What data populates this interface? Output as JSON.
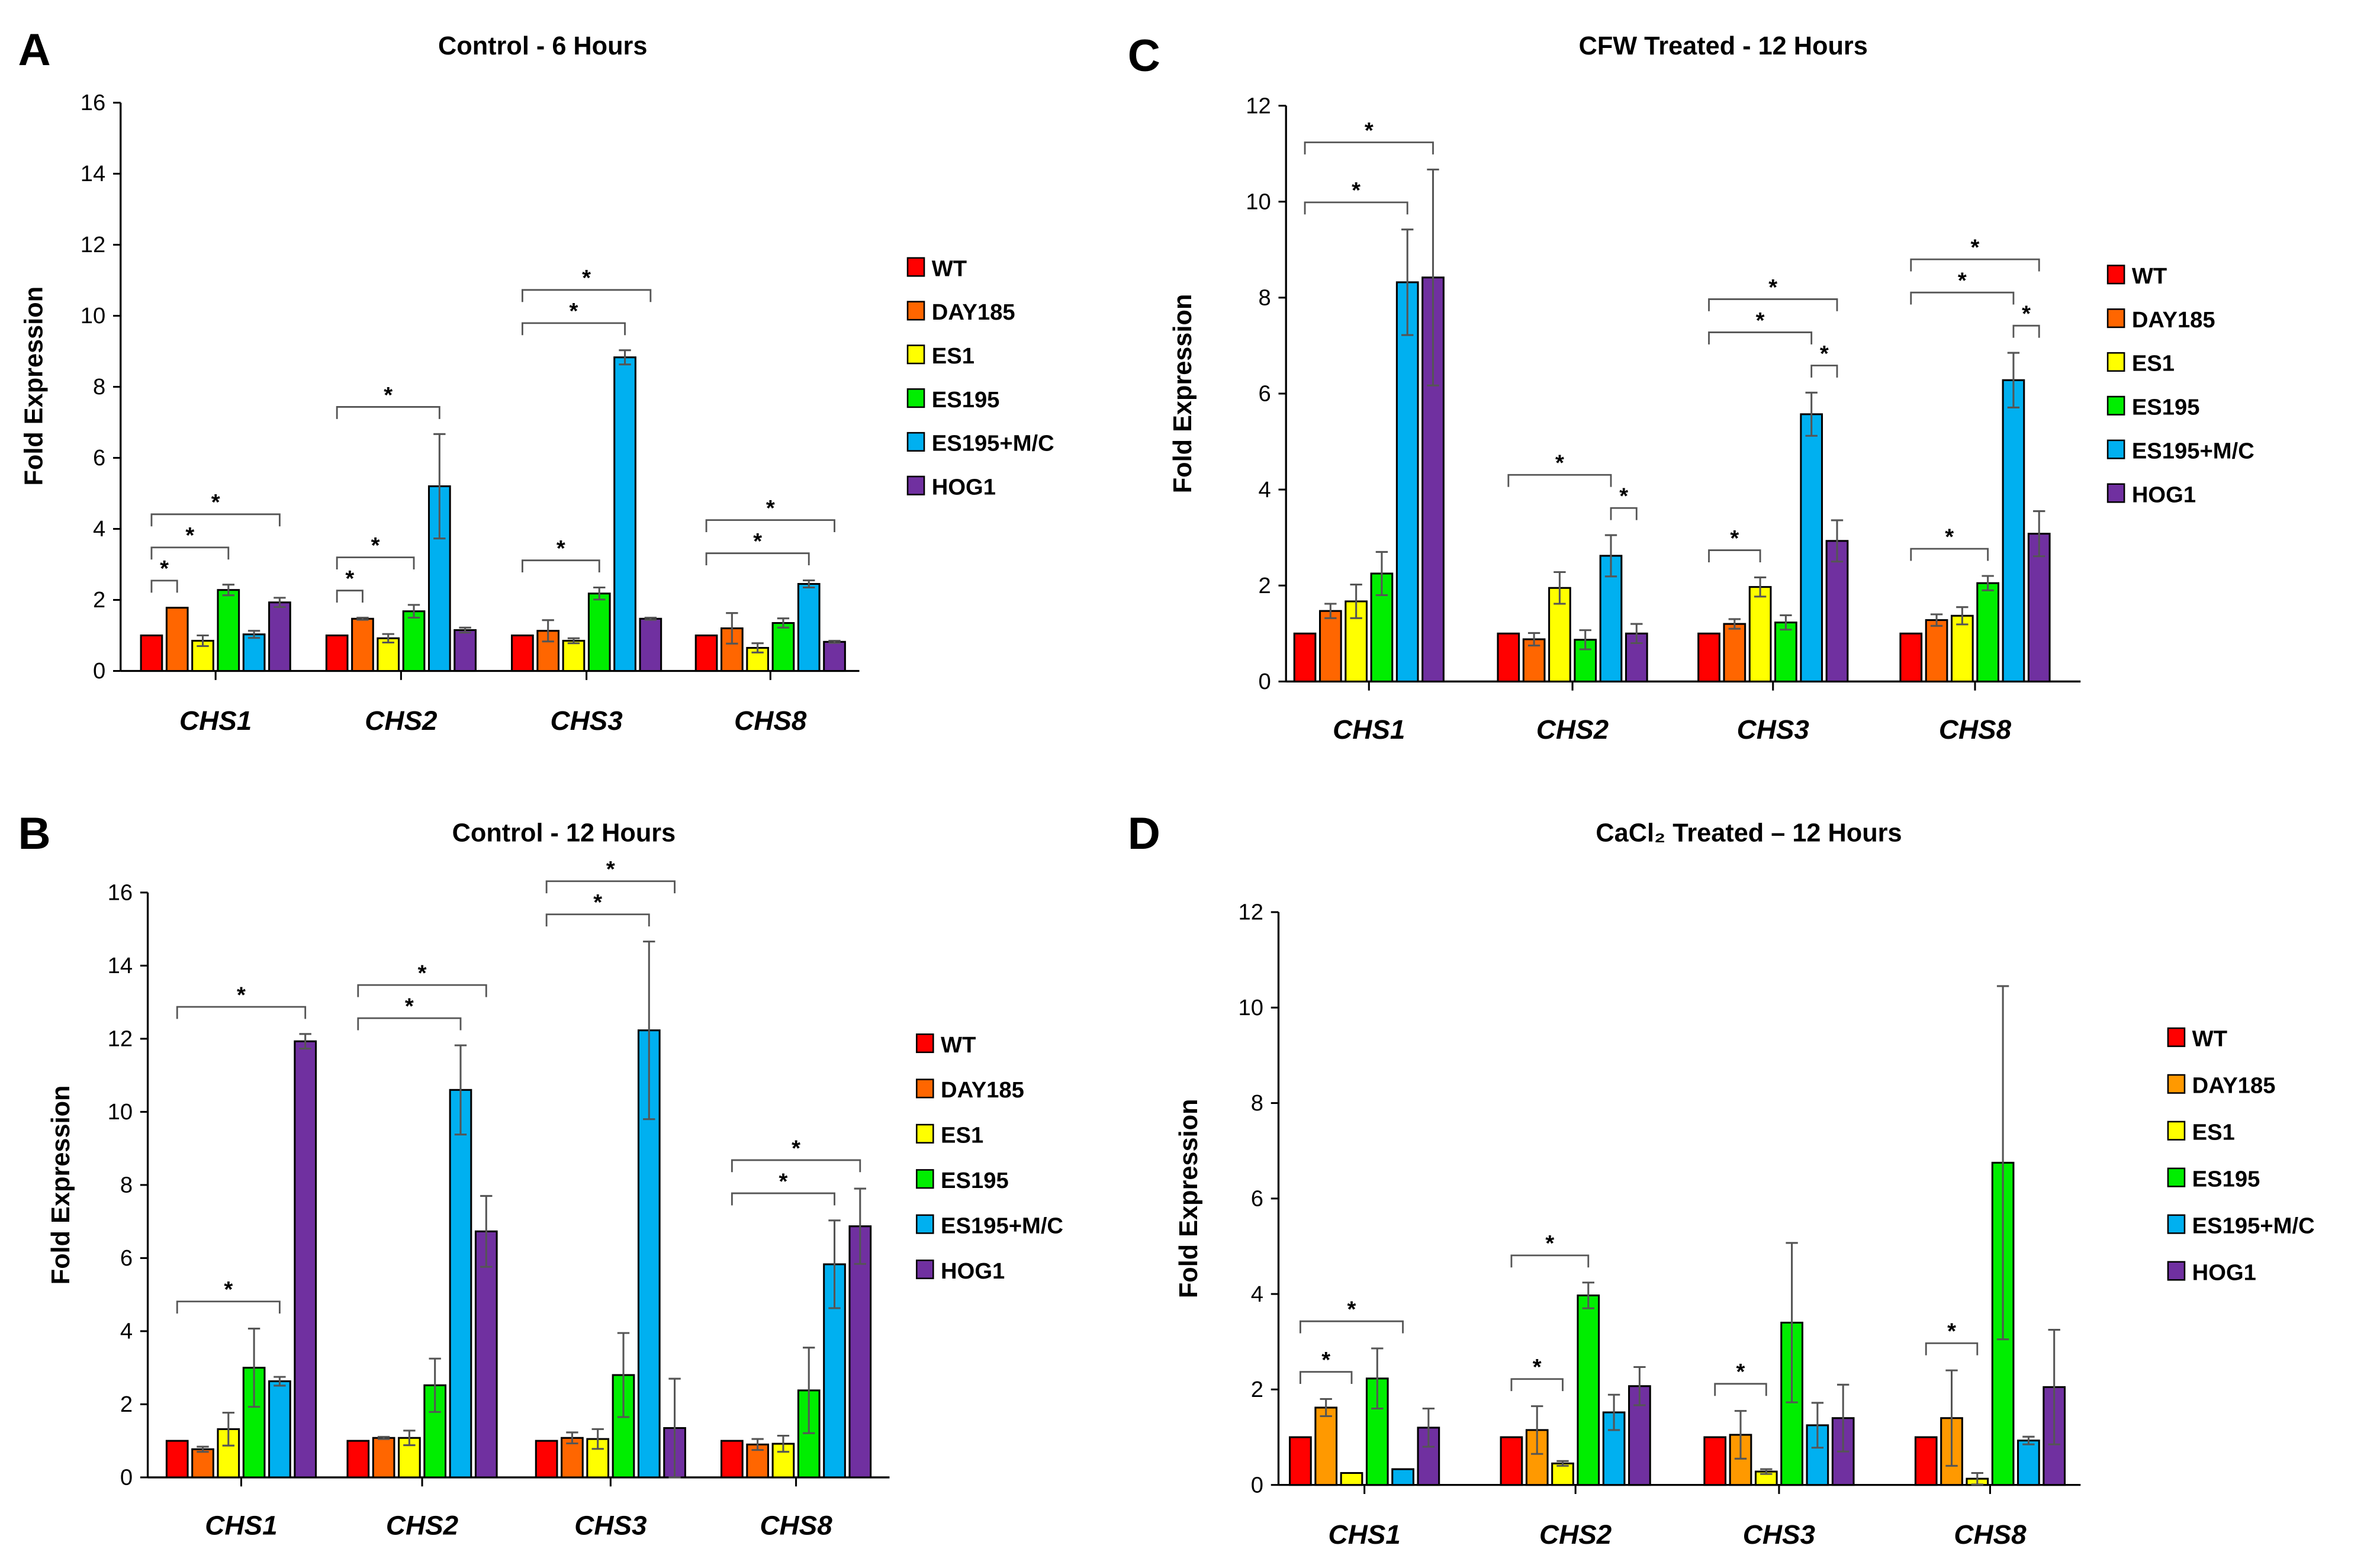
{
  "series_colors": [
    "#ff0000",
    "#ff6600",
    "#ffff00",
    "#00ee00",
    "#00b0f0",
    "#7030a0"
  ],
  "chart_data": [
    {
      "panel": "A",
      "type": "bar",
      "title": "Control - 6 Hours",
      "ylabel": "Fold Expression",
      "ylim": [
        0,
        16
      ],
      "ytick_step": 2,
      "ytick_labels": [
        "0",
        "2",
        "4",
        "6",
        "8",
        "10",
        "12",
        "14",
        "16"
      ],
      "categories": [
        "CHS1",
        "CHS2",
        "CHS3",
        "CHS8"
      ],
      "legend": [
        "WT",
        "DAY185",
        "ES1",
        "ES195",
        "ES195+M/C",
        "HOG1"
      ],
      "values": [
        [
          1,
          1.78,
          0.85,
          2.28,
          1.03,
          1.93
        ],
        [
          1,
          1.47,
          0.92,
          1.68,
          5.2,
          1.15
        ],
        [
          1,
          1.13,
          0.85,
          2.18,
          8.83,
          1.47
        ],
        [
          1,
          1.2,
          0.65,
          1.35,
          2.45,
          0.82
        ]
      ],
      "errors": [
        [
          0,
          0,
          0.15,
          0.15,
          0.1,
          0.13
        ],
        [
          0,
          0.03,
          0.12,
          0.18,
          1.47,
          0.07
        ],
        [
          0,
          0.3,
          0.07,
          0.17,
          0.2,
          0.03
        ],
        [
          0,
          0.43,
          0.13,
          0.13,
          0.1,
          0.03
        ]
      ],
      "significance": [
        [
          0,
          0,
          1
        ],
        [
          0,
          0,
          3
        ],
        [
          0,
          0,
          5
        ],
        [
          1,
          0,
          1
        ],
        [
          1,
          0,
          3
        ],
        [
          1,
          0,
          4
        ],
        [
          2,
          0,
          3
        ],
        [
          2,
          0,
          4
        ],
        [
          2,
          0,
          5
        ],
        [
          3,
          0,
          4
        ],
        [
          3,
          0,
          5
        ]
      ],
      "significance_mark": "*"
    },
    {
      "panel": "B",
      "type": "bar",
      "title": "Control - 12 Hours",
      "ylabel": "Fold Expression",
      "ylim": [
        0,
        16
      ],
      "ytick_step": 2,
      "ytick_labels": [
        "0",
        "2",
        "4",
        "6",
        "8",
        "10",
        "12",
        "14",
        "16"
      ],
      "categories": [
        "CHS1",
        "CHS2",
        "CHS3",
        "CHS8"
      ],
      "legend": [
        "WT",
        "DAY185",
        "ES1",
        "ES195",
        "ES195+M/C",
        "HOG1"
      ],
      "values": [
        [
          1,
          0.77,
          1.32,
          3.0,
          2.63,
          11.93
        ],
        [
          1,
          1.08,
          1.08,
          2.52,
          10.6,
          6.73
        ],
        [
          1,
          1.08,
          1.05,
          2.8,
          12.23,
          1.35
        ],
        [
          1,
          0.9,
          0.92,
          2.38,
          5.83,
          6.87
        ]
      ],
      "errors": [
        [
          0,
          0.07,
          0.45,
          1.07,
          0.12,
          0.2
        ],
        [
          0,
          0.03,
          0.2,
          0.73,
          1.22,
          0.97
        ],
        [
          0,
          0.15,
          0.27,
          1.15,
          2.43,
          1.35
        ],
        [
          0,
          0.15,
          0.22,
          1.17,
          1.2,
          1.03
        ]
      ],
      "significance": [
        [
          0,
          0,
          4
        ],
        [
          0,
          0,
          5
        ],
        [
          1,
          0,
          4
        ],
        [
          1,
          0,
          5
        ],
        [
          2,
          0,
          4
        ],
        [
          2,
          0,
          5
        ],
        [
          3,
          0,
          4
        ],
        [
          3,
          0,
          5
        ]
      ],
      "significance_mark": "*"
    },
    {
      "panel": "C",
      "type": "bar",
      "title": "CFW Treated - 12 Hours",
      "ylabel": "Fold Expression",
      "ylim": [
        0,
        12
      ],
      "ytick_step": 2,
      "ytick_labels": [
        "0",
        "2",
        "4",
        "6",
        "8",
        "10",
        "12"
      ],
      "categories": [
        "CHS1",
        "CHS2",
        "CHS3",
        "CHS8"
      ],
      "legend": [
        "WT",
        "DAY185",
        "ES1",
        "ES195",
        "ES195+M/C",
        "HOG1"
      ],
      "values": [
        [
          1,
          1.47,
          1.67,
          2.25,
          8.32,
          8.42
        ],
        [
          1,
          0.88,
          1.95,
          0.87,
          2.62,
          1.0
        ],
        [
          1,
          1.2,
          1.97,
          1.23,
          5.57,
          2.93
        ],
        [
          1,
          1.28,
          1.37,
          2.05,
          6.28,
          3.08
        ]
      ],
      "errors": [
        [
          0,
          0.15,
          0.35,
          0.45,
          1.1,
          2.25
        ],
        [
          0,
          0.13,
          0.33,
          0.2,
          0.43,
          0.2
        ],
        [
          0,
          0.1,
          0.2,
          0.15,
          0.45,
          0.43
        ],
        [
          0,
          0.12,
          0.18,
          0.15,
          0.57,
          0.47
        ]
      ],
      "significance": [
        [
          0,
          0,
          4
        ],
        [
          0,
          0,
          5
        ],
        [
          1,
          0,
          4
        ],
        [
          1,
          4,
          5
        ],
        [
          2,
          0,
          2
        ],
        [
          2,
          0,
          4
        ],
        [
          2,
          0,
          5
        ],
        [
          2,
          4,
          5
        ],
        [
          3,
          0,
          3
        ],
        [
          3,
          0,
          4
        ],
        [
          3,
          0,
          5
        ],
        [
          3,
          4,
          5
        ]
      ],
      "significance_mark": "*"
    },
    {
      "panel": "D",
      "type": "bar",
      "title": "CaCl₂ Treated – 12 Hours",
      "ylabel": "Fold Expression",
      "ylim": [
        0,
        12
      ],
      "ytick_step": 2,
      "ytick_labels": [
        "0",
        "2",
        "4",
        "6",
        "8",
        "10",
        "12"
      ],
      "categories": [
        "CHS1",
        "CHS2",
        "CHS3",
        "CHS8"
      ],
      "legend": [
        "WT",
        "DAY185",
        "ES1",
        "ES195",
        "ES195+M/C",
        "HOG1"
      ],
      "values": [
        [
          1,
          1.62,
          0.25,
          2.23,
          0.33,
          1.2
        ],
        [
          1,
          1.15,
          0.45,
          3.97,
          1.52,
          2.07
        ],
        [
          1,
          1.05,
          0.28,
          3.4,
          1.25,
          1.4
        ],
        [
          1,
          1.4,
          0.13,
          6.75,
          0.93,
          2.05
        ]
      ],
      "errors": [
        [
          0,
          0.18,
          0,
          0.63,
          0,
          0.4
        ],
        [
          0,
          0.5,
          0.05,
          0.27,
          0.37,
          0.4
        ],
        [
          0,
          0.5,
          0.05,
          1.67,
          0.47,
          0.7
        ],
        [
          0,
          1.0,
          0.12,
          3.7,
          0.08,
          1.2
        ]
      ],
      "significance": [
        [
          0,
          0,
          2
        ],
        [
          0,
          0,
          4
        ],
        [
          1,
          0,
          2
        ],
        [
          1,
          0,
          3
        ],
        [
          2,
          0,
          2
        ],
        [
          3,
          0,
          2
        ]
      ],
      "significance_mark": "*",
      "dayColor": "#ff9900"
    }
  ]
}
